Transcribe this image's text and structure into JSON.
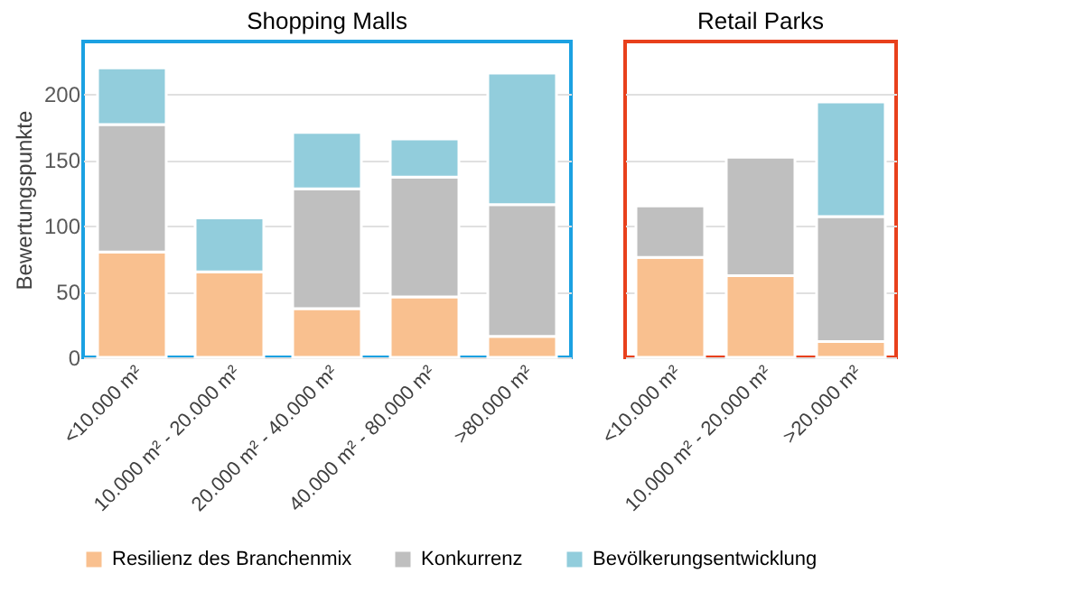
{
  "chart_data": [
    {
      "type": "bar",
      "title": "Shopping Malls",
      "ylabel": "Bewertungspunkte",
      "stacked": true,
      "categories": [
        "<10.000 m²",
        "10.000 m² - 20.000 m²",
        "20.000 m² - 40.000 m²",
        "40.000 m² - 80.000 m²",
        ">80.000 m²"
      ],
      "series": [
        {
          "name": "Resilienz des Branchenmix",
          "color": "#f9c08f",
          "values": [
            80,
            65,
            37,
            46,
            16
          ]
        },
        {
          "name": "Konkurrenz",
          "color": "#bfbfbf",
          "values": [
            97,
            null,
            91,
            91,
            100
          ]
        },
        {
          "name": "Bevölkerungsentwicklung",
          "color": "#92cddc",
          "values": [
            43,
            41,
            43,
            29,
            100
          ]
        }
      ],
      "ylim": [
        0,
        240
      ],
      "yticks": [
        0,
        50,
        100,
        150,
        200
      ],
      "grid": "y",
      "legend": "bottom"
    },
    {
      "type": "bar",
      "title": "Retail Parks",
      "stacked": true,
      "categories": [
        "<10.000 m²",
        "10.000 m² - 20.000 m²",
        ">20.000 m²"
      ],
      "series": [
        {
          "name": "Resilienz des Branchenmix",
          "color": "#f9c08f",
          "values": [
            76,
            62,
            12
          ]
        },
        {
          "name": "Konkurrenz",
          "color": "#bfbfbf",
          "values": [
            39,
            90,
            95
          ]
        },
        {
          "name": "Bevölkerungsentwicklung",
          "color": "#92cddc",
          "values": [
            null,
            null,
            87
          ]
        }
      ],
      "ylim": [
        0,
        240
      ],
      "yticks": [
        0,
        50,
        100,
        150,
        200
      ],
      "grid": "y",
      "tick_labels": "x"
    }
  ]
}
